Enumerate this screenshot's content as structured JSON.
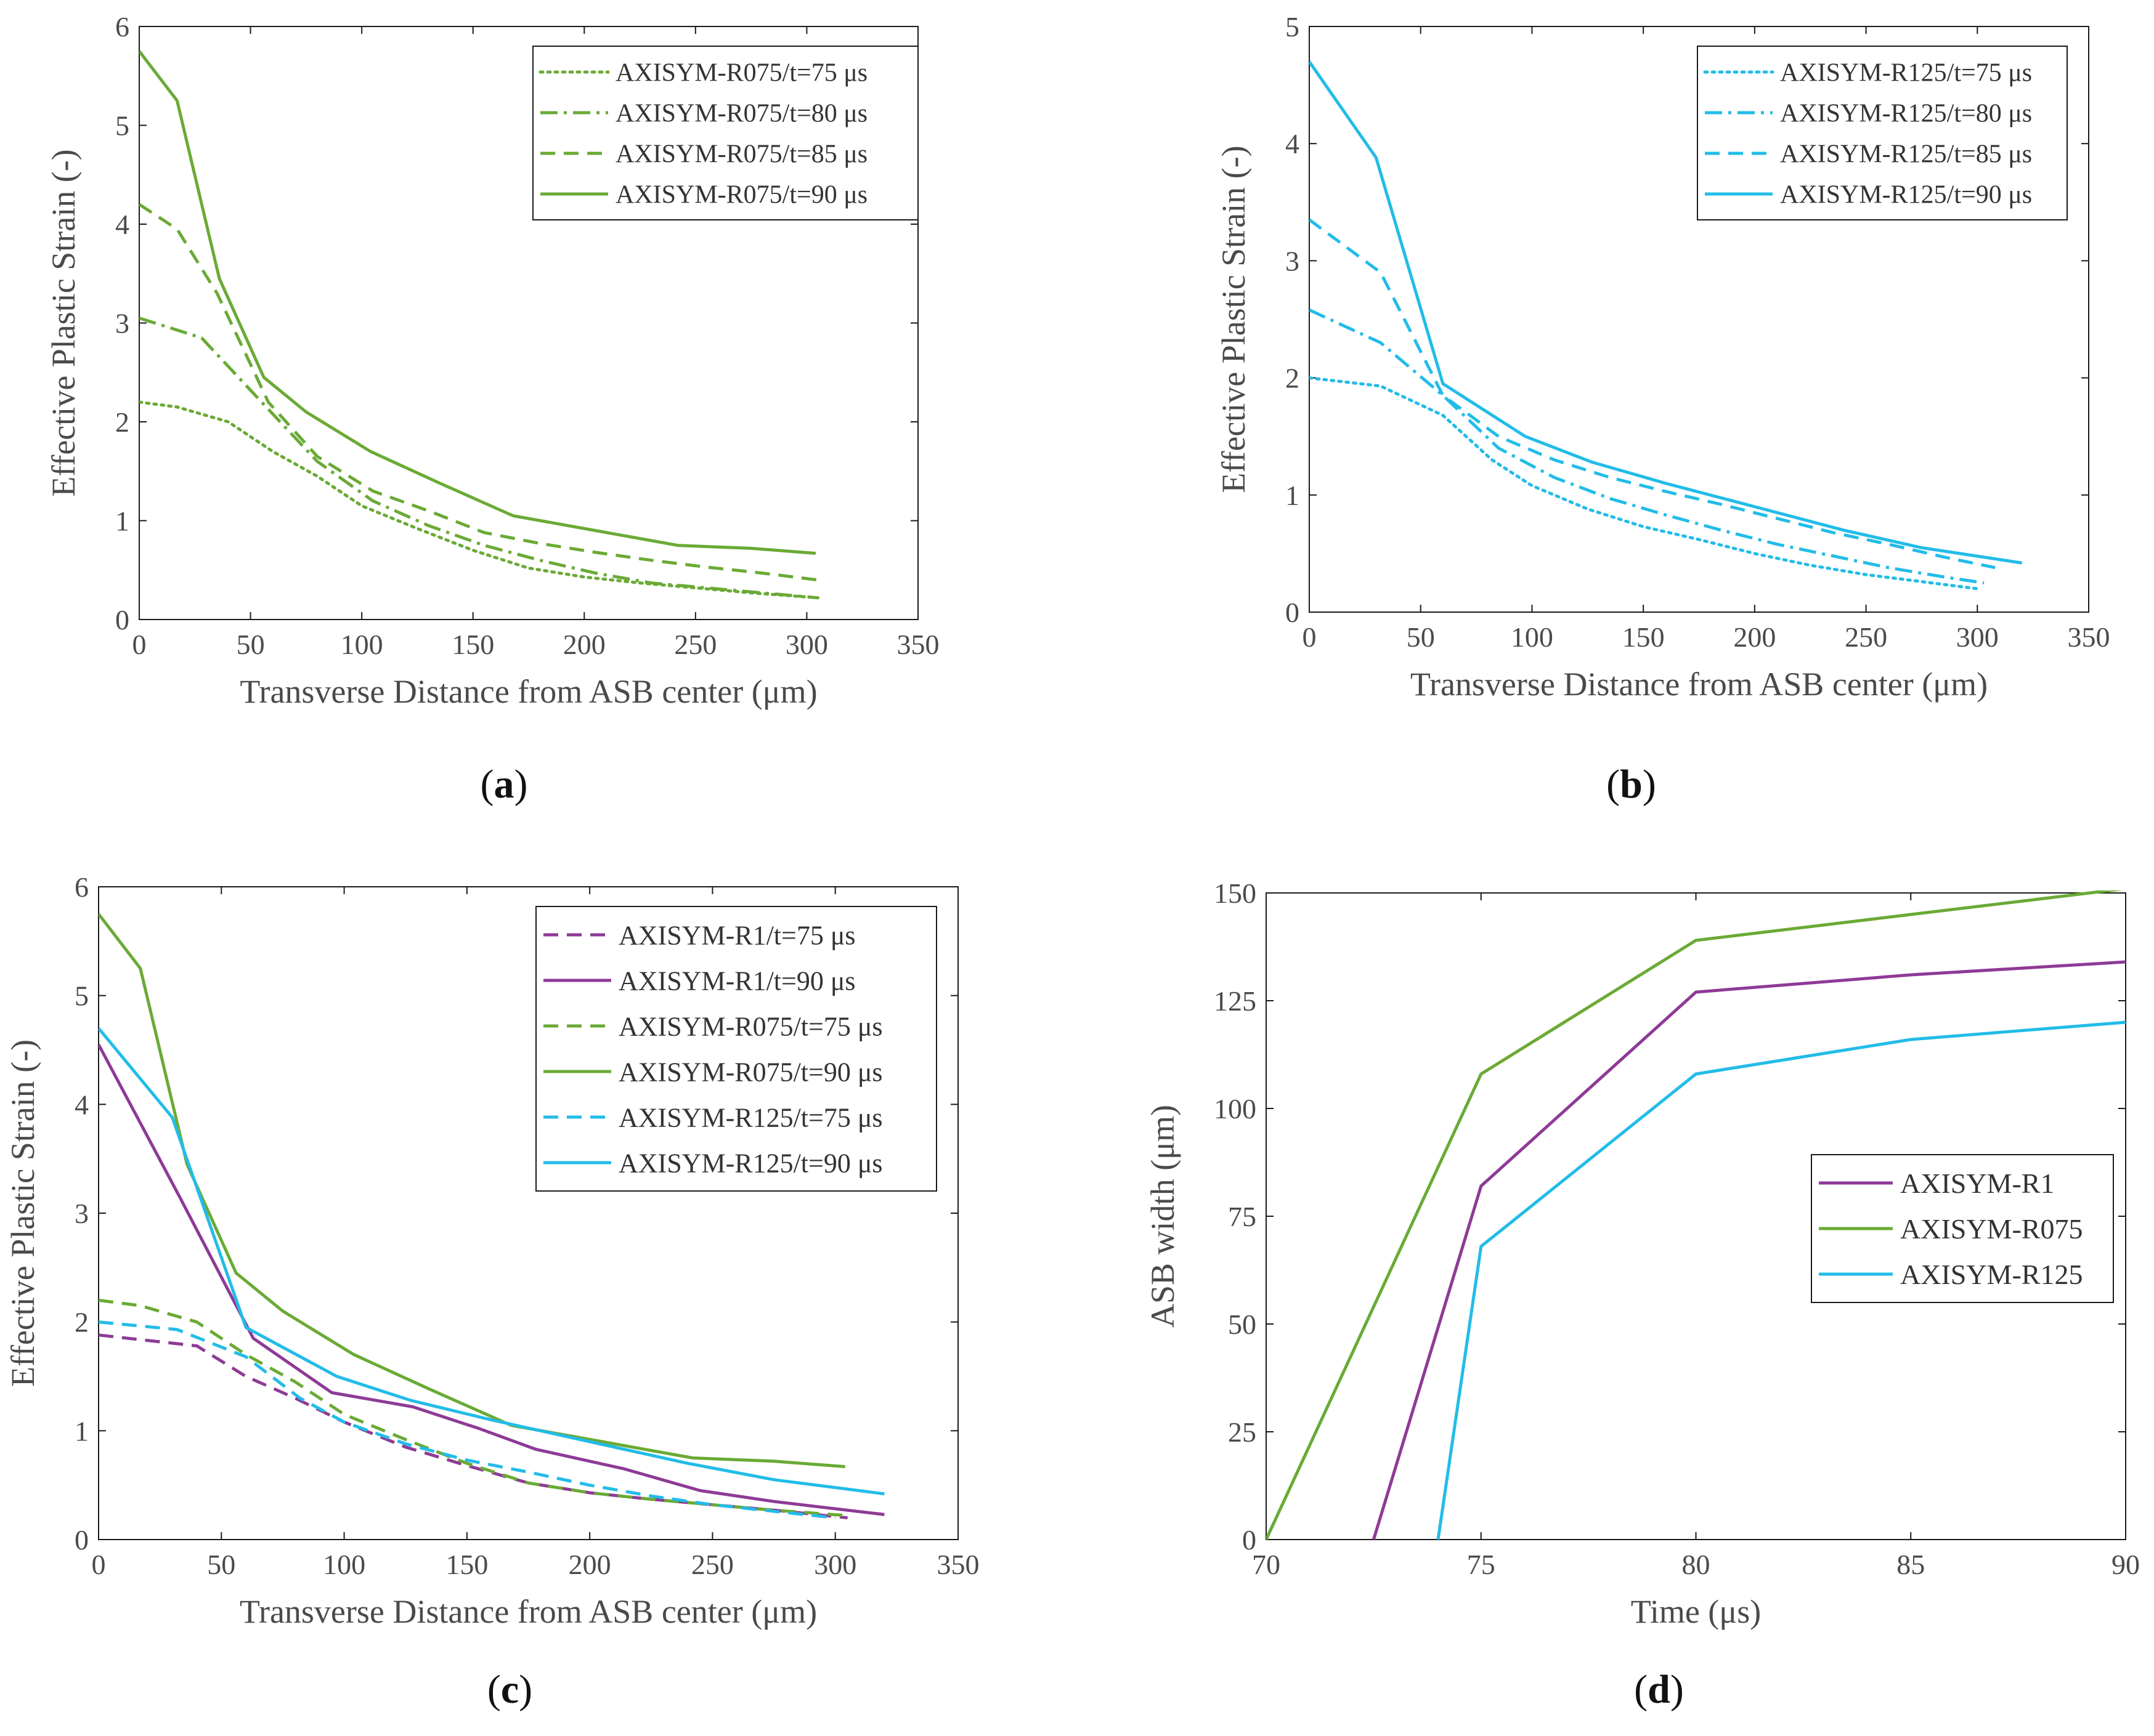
{
  "chart_data": [
    {
      "id": "a",
      "type": "line",
      "caption": "a",
      "xlabel": "Transverse Distance from ASB center (μm)",
      "ylabel": "Effective Plastic Strain (-)",
      "xlim": [
        0,
        350
      ],
      "ylim": [
        0,
        6
      ],
      "xticks": [
        0,
        50,
        100,
        150,
        200,
        250,
        300,
        350
      ],
      "yticks": [
        0,
        1,
        2,
        3,
        4,
        5,
        6
      ],
      "legend_position": "top-right",
      "series": [
        {
          "name": "AXISYM-R075/t=75 μs",
          "color": "#6aaa35",
          "style": "dotted",
          "x": [
            0,
            17,
            40,
            60,
            80,
            100,
            125,
            150,
            175,
            200,
            225,
            250,
            275,
            305
          ],
          "y": [
            2.2,
            2.15,
            2.0,
            1.7,
            1.45,
            1.15,
            0.92,
            0.7,
            0.52,
            0.43,
            0.37,
            0.32,
            0.27,
            0.22
          ]
        },
        {
          "name": "AXISYM-R075/t=80 μs",
          "color": "#6aaa35",
          "style": "dashdot",
          "x": [
            0,
            28,
            55,
            80,
            105,
            130,
            155,
            180,
            205,
            230,
            255,
            280,
            305
          ],
          "y": [
            3.05,
            2.85,
            2.2,
            1.6,
            1.2,
            0.95,
            0.75,
            0.6,
            0.47,
            0.37,
            0.32,
            0.27,
            0.22
          ]
        },
        {
          "name": "AXISYM-R075/t=85 μs",
          "color": "#6aaa35",
          "style": "dashed",
          "x": [
            0,
            17,
            35,
            58,
            80,
            105,
            130,
            155,
            180,
            205,
            230,
            255,
            280,
            305
          ],
          "y": [
            4.2,
            3.95,
            3.3,
            2.2,
            1.65,
            1.3,
            1.1,
            0.88,
            0.77,
            0.68,
            0.6,
            0.53,
            0.47,
            0.4
          ]
        },
        {
          "name": "AXISYM-R075/t=90 μs",
          "color": "#6aaa35",
          "style": "solid",
          "x": [
            0,
            17,
            36,
            56,
            75,
            104,
            135,
            168,
            205,
            242,
            275,
            304
          ],
          "y": [
            5.75,
            5.25,
            3.45,
            2.45,
            2.1,
            1.7,
            1.38,
            1.05,
            0.9,
            0.75,
            0.72,
            0.67
          ]
        }
      ]
    },
    {
      "id": "b",
      "type": "line",
      "caption": "b",
      "xlabel": "Transverse Distance from ASB center (μm)",
      "ylabel": "Effective Plastic Strain (-)",
      "xlim": [
        0,
        350
      ],
      "ylim": [
        0,
        5
      ],
      "xticks": [
        0,
        50,
        100,
        150,
        200,
        250,
        300,
        350
      ],
      "yticks": [
        0,
        1,
        2,
        3,
        4,
        5
      ],
      "legend_position": "top-right",
      "series": [
        {
          "name": "AXISYM-R125/t=75 μs",
          "color": "#22bce8",
          "style": "dotted",
          "x": [
            0,
            32,
            60,
            82,
            100,
            125,
            150,
            175,
            200,
            225,
            250,
            275,
            300
          ],
          "y": [
            2.0,
            1.93,
            1.68,
            1.3,
            1.08,
            0.88,
            0.73,
            0.62,
            0.5,
            0.4,
            0.32,
            0.26,
            0.2
          ]
        },
        {
          "name": "AXISYM-R125/t=80 μs",
          "color": "#22bce8",
          "style": "dashdot",
          "x": [
            0,
            32,
            60,
            85,
            110,
            135,
            160,
            185,
            210,
            235,
            260,
            285,
            303
          ],
          "y": [
            2.58,
            2.3,
            1.85,
            1.4,
            1.15,
            0.97,
            0.83,
            0.7,
            0.58,
            0.48,
            0.38,
            0.3,
            0.25
          ]
        },
        {
          "name": "AXISYM-R125/t=85 μs",
          "color": "#22bce8",
          "style": "dashed",
          "x": [
            0,
            32,
            60,
            85,
            110,
            135,
            160,
            185,
            210,
            235,
            260,
            285,
            308
          ],
          "y": [
            3.35,
            2.9,
            1.85,
            1.5,
            1.3,
            1.15,
            1.03,
            0.92,
            0.8,
            0.68,
            0.58,
            0.47,
            0.38
          ]
        },
        {
          "name": "AXISYM-R125/t=90 μs",
          "color": "#22bce8",
          "style": "solid",
          "x": [
            0,
            30,
            60,
            97,
            127,
            160,
            200,
            240,
            275,
            320
          ],
          "y": [
            4.7,
            3.88,
            1.95,
            1.5,
            1.28,
            1.1,
            0.9,
            0.7,
            0.55,
            0.42
          ]
        }
      ]
    },
    {
      "id": "c",
      "type": "line",
      "caption": "c",
      "xlabel": "Transverse Distance from ASB center (μm)",
      "ylabel": "Effective Plastic Strain (-)",
      "xlim": [
        0,
        350
      ],
      "ylim": [
        0,
        6
      ],
      "xticks": [
        0,
        50,
        100,
        150,
        200,
        250,
        300,
        350
      ],
      "yticks": [
        0,
        1,
        2,
        3,
        4,
        5,
        6
      ],
      "legend_position": "top-right",
      "series": [
        {
          "name": "AXISYM-R1/t=75 μs",
          "color": "#8e3a96",
          "style": "dashed",
          "x": [
            0,
            40,
            60,
            80,
            100,
            125,
            150,
            175,
            200,
            225,
            250,
            275,
            305
          ],
          "y": [
            1.88,
            1.78,
            1.5,
            1.3,
            1.08,
            0.85,
            0.68,
            0.52,
            0.43,
            0.37,
            0.32,
            0.27,
            0.2
          ]
        },
        {
          "name": "AXISYM-R1/t=90 μs",
          "color": "#8e3a96",
          "style": "solid",
          "x": [
            0,
            33,
            63,
            95,
            128,
            155,
            178,
            214,
            245,
            275,
            320
          ],
          "y": [
            4.55,
            3.15,
            1.85,
            1.35,
            1.22,
            1.02,
            0.83,
            0.65,
            0.45,
            0.35,
            0.23
          ]
        },
        {
          "name": "AXISYM-R075/t=75 μs",
          "color": "#6aaa35",
          "style": "dashed",
          "x": [
            0,
            17,
            40,
            60,
            80,
            100,
            125,
            150,
            175,
            200,
            225,
            250,
            275,
            305
          ],
          "y": [
            2.2,
            2.15,
            2.0,
            1.7,
            1.45,
            1.15,
            0.92,
            0.7,
            0.52,
            0.43,
            0.37,
            0.32,
            0.27,
            0.22
          ]
        },
        {
          "name": "AXISYM-R075/t=90 μs",
          "color": "#6aaa35",
          "style": "solid",
          "x": [
            0,
            17,
            36,
            56,
            75,
            104,
            135,
            168,
            205,
            242,
            275,
            304
          ],
          "y": [
            5.75,
            5.25,
            3.45,
            2.45,
            2.1,
            1.7,
            1.38,
            1.05,
            0.9,
            0.75,
            0.72,
            0.67
          ]
        },
        {
          "name": "AXISYM-R125/t=75 μs",
          "color": "#22bce8",
          "style": "dashed",
          "x": [
            0,
            32,
            60,
            82,
            100,
            125,
            150,
            175,
            200,
            225,
            250,
            275,
            300
          ],
          "y": [
            2.0,
            1.93,
            1.68,
            1.3,
            1.08,
            0.88,
            0.73,
            0.62,
            0.5,
            0.4,
            0.32,
            0.26,
            0.2
          ]
        },
        {
          "name": "AXISYM-R125/t=90 μs",
          "color": "#22bce8",
          "style": "solid",
          "x": [
            0,
            30,
            60,
            97,
            127,
            160,
            200,
            240,
            275,
            320
          ],
          "y": [
            4.7,
            3.88,
            1.95,
            1.5,
            1.28,
            1.1,
            0.9,
            0.7,
            0.55,
            0.42
          ]
        }
      ]
    },
    {
      "id": "d",
      "type": "line",
      "caption": "d",
      "xlabel": "Time (μs)",
      "ylabel": "ASB width (μm)",
      "xlim": [
        70,
        90
      ],
      "ylim": [
        0,
        150
      ],
      "xticks": [
        70,
        75,
        80,
        85,
        90
      ],
      "yticks": [
        0,
        25,
        50,
        75,
        100,
        125,
        150
      ],
      "legend_position": "right",
      "series": [
        {
          "name": "AXISYM-R1",
          "color": "#8e3a96",
          "style": "solid",
          "x": [
            72.5,
            75,
            80,
            85,
            90
          ],
          "y": [
            0,
            82,
            127,
            131,
            134
          ]
        },
        {
          "name": "AXISYM-R075",
          "color": "#6aaa35",
          "style": "solid",
          "x": [
            70,
            75,
            80,
            85,
            90
          ],
          "y": [
            0,
            108,
            139,
            145,
            151
          ]
        },
        {
          "name": "AXISYM-R125",
          "color": "#22bce8",
          "style": "solid",
          "x": [
            74,
            75,
            80,
            85,
            90
          ],
          "y": [
            0,
            68,
            108,
            116,
            120
          ]
        }
      ]
    }
  ]
}
